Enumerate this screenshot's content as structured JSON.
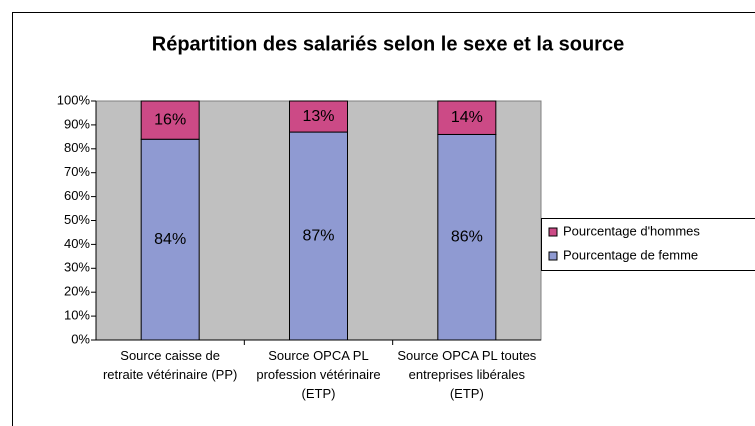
{
  "chart_data": {
    "type": "stacked_bar",
    "title": "Répartition des salariés selon le sexe et la source",
    "categories": [
      "Source caisse de retraite vétérinaire (PP)",
      "Source OPCA PL profession vétérinaire (ETP)",
      "Source OPCA PL toutes entreprises libérales (ETP)"
    ],
    "series": [
      {
        "name": "Pourcentage de femme",
        "color": "#8f9ad2",
        "values": [
          84,
          87,
          86
        ],
        "value_labels": [
          "84%",
          "87%",
          "86%"
        ]
      },
      {
        "name": "Pourcentage d'hommes",
        "color": "#cc4a86",
        "values": [
          16,
          13,
          14
        ],
        "value_labels": [
          "16%",
          "13%",
          "14%"
        ]
      }
    ],
    "ylim": [
      0,
      100
    ],
    "yticks": [
      {
        "value": 0,
        "label": "0%"
      },
      {
        "value": 10,
        "label": "10%"
      },
      {
        "value": 20,
        "label": "20%"
      },
      {
        "value": 30,
        "label": "30%"
      },
      {
        "value": 40,
        "label": "40%"
      },
      {
        "value": 50,
        "label": "50%"
      },
      {
        "value": 60,
        "label": "60%"
      },
      {
        "value": 70,
        "label": "70%"
      },
      {
        "value": 80,
        "label": "80%"
      },
      {
        "value": 90,
        "label": "90%"
      },
      {
        "value": 100,
        "label": "100%"
      }
    ],
    "legend": "right",
    "plot_background": "#c0c0c0"
  }
}
